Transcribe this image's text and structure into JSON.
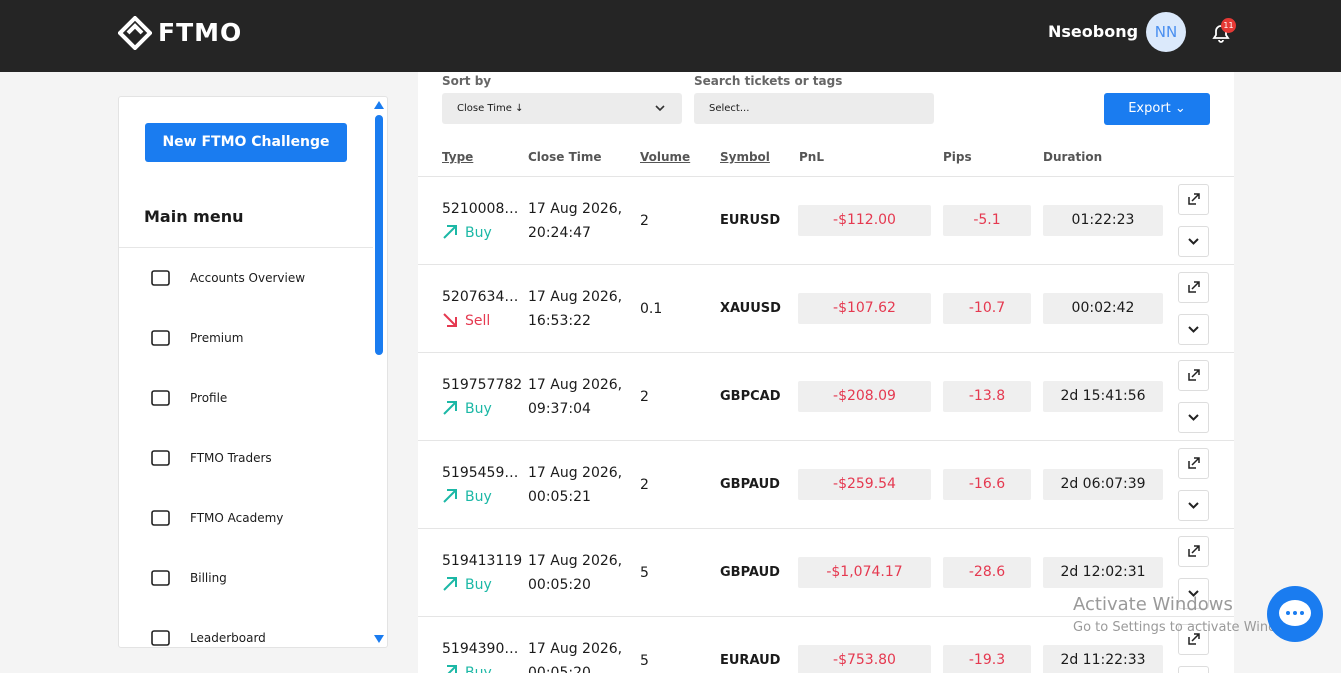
{
  "header": {
    "logo": "FTMO",
    "user_name": "Nseobong",
    "avatar": "NN",
    "notifications": "11"
  },
  "sidebar": {
    "cta": "New FTMO Challenge",
    "menu_title": "Main menu",
    "items": [
      "Accounts Overview",
      "Premium",
      "Profile",
      "FTMO Traders",
      "FTMO Academy",
      "Billing",
      "Leaderboard"
    ]
  },
  "filters": {
    "sort_label": "Sort by",
    "sort_value": "Close Time ↓",
    "search_label": "Search tickets or tags",
    "search_placeholder": "Select...",
    "export": "Export"
  },
  "table": {
    "columns": [
      "Type",
      "Close Time",
      "Volume",
      "Symbol",
      "PnL",
      "Pips",
      "Duration"
    ],
    "rows": [
      {
        "ticket": "5210008…",
        "side": "Buy",
        "date": "17 Aug 2026,",
        "time": "20:24:47",
        "volume": "2",
        "symbol": "EURUSD",
        "pnl": "-$112.00",
        "pips": "-5.1",
        "duration": "01:22:23"
      },
      {
        "ticket": "5207634…",
        "side": "Sell",
        "date": "17 Aug 2026,",
        "time": "16:53:22",
        "volume": "0.1",
        "symbol": "XAUUSD",
        "pnl": "-$107.62",
        "pips": "-10.7",
        "duration": "00:02:42"
      },
      {
        "ticket": "519757782",
        "side": "Buy",
        "date": "17 Aug 2026,",
        "time": "09:37:04",
        "volume": "2",
        "symbol": "GBPCAD",
        "pnl": "-$208.09",
        "pips": "-13.8",
        "duration": "2d 15:41:56"
      },
      {
        "ticket": "5195459…",
        "side": "Buy",
        "date": "17 Aug 2026,",
        "time": "00:05:21",
        "volume": "2",
        "symbol": "GBPAUD",
        "pnl": "-$259.54",
        "pips": "-16.6",
        "duration": "2d 06:07:39"
      },
      {
        "ticket": "519413119",
        "side": "Buy",
        "date": "17 Aug 2026,",
        "time": "00:05:20",
        "volume": "5",
        "symbol": "GBPAUD",
        "pnl": "-$1,074.17",
        "pips": "-28.6",
        "duration": "2d 12:02:31"
      },
      {
        "ticket": "5194390…",
        "side": "Buy",
        "date": "17 Aug 2026,",
        "time": "00:05:20",
        "volume": "5",
        "symbol": "EURAUD",
        "pnl": "-$753.80",
        "pips": "-19.3",
        "duration": "2d 11:22:33"
      }
    ]
  },
  "watermark": {
    "title": "Activate Windows",
    "subtitle": "Go to Settings to activate Windows."
  }
}
